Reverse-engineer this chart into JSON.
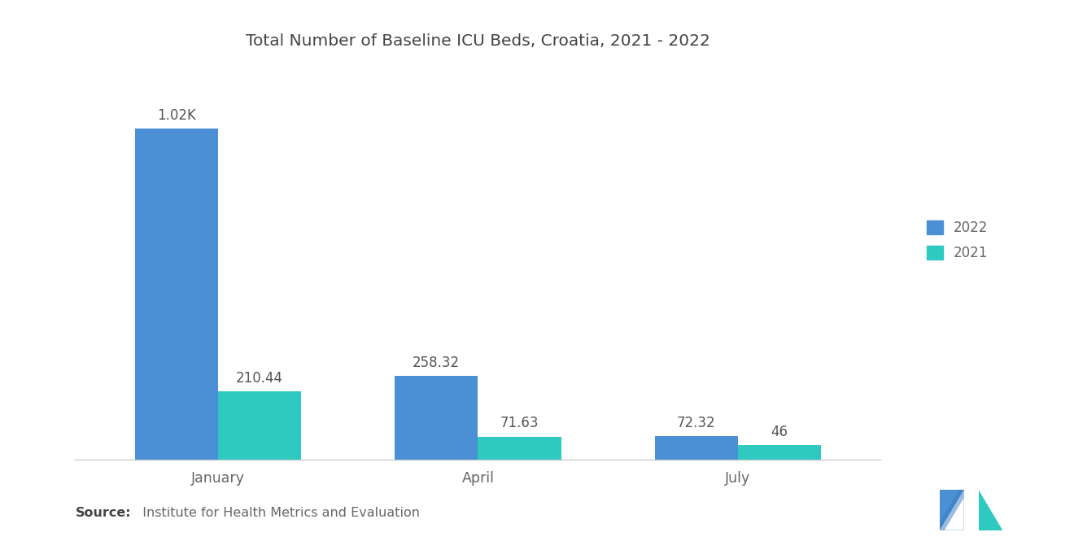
{
  "title": "Total Number of Baseline ICU Beds, Croatia, 2021 - 2022",
  "categories": [
    "January",
    "April",
    "July"
  ],
  "values_2022": [
    1020,
    258.32,
    72.32
  ],
  "values_2021": [
    210.44,
    71.63,
    46
  ],
  "labels_2022": [
    "1.02K",
    "258.32",
    "72.32"
  ],
  "labels_2021": [
    "210.44",
    "71.63",
    "46"
  ],
  "color_2022": "#4B8FD5",
  "color_2021": "#2EC9BF",
  "background_color": "#FFFFFF",
  "source_bold": "Source:",
  "source_normal": "  Institute for Health Metrics and Evaluation",
  "legend_labels": [
    "2022",
    "2021"
  ],
  "bar_width": 0.32,
  "ylim": [
    0,
    1200
  ],
  "title_fontsize": 14.5,
  "label_fontsize": 12,
  "tick_fontsize": 12.5,
  "source_fontsize": 11.5,
  "legend_fontsize": 12
}
